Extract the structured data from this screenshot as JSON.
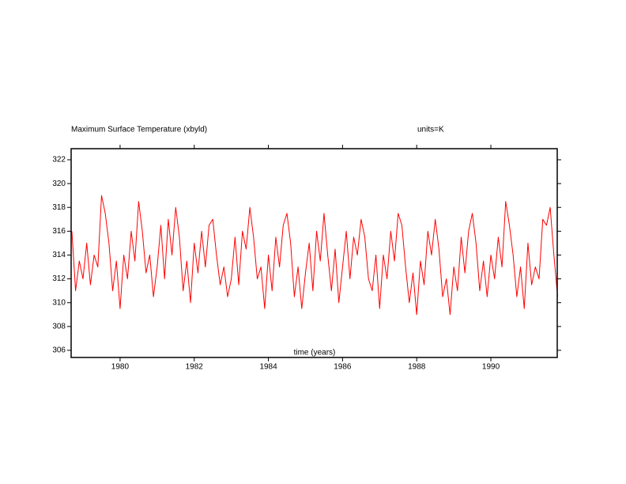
{
  "chart_data": {
    "type": "line",
    "title": "Maximum Surface Temperature (xbyld)",
    "subtitle": "units=K",
    "x_label": "time (years)",
    "xlim": [
      1978.68,
      1991.79
    ],
    "ylim": [
      305.4,
      322.93
    ],
    "xticks": [
      1980,
      1982,
      1984,
      1986,
      1988,
      1990
    ],
    "yticks": [
      306,
      308,
      310,
      312,
      314,
      316,
      318,
      320,
      322
    ],
    "grid": false,
    "x": [
      1978.7,
      1978.8,
      1978.9,
      1979.0,
      1979.1,
      1979.2,
      1979.3,
      1979.4,
      1979.5,
      1979.6,
      1979.7,
      1979.8,
      1979.9,
      1980.0,
      1980.1,
      1980.2,
      1980.3,
      1980.4,
      1980.5,
      1980.6,
      1980.7,
      1980.8,
      1980.9,
      1981.0,
      1981.1,
      1981.2,
      1981.3,
      1981.4,
      1981.5,
      1981.6,
      1981.7,
      1981.8,
      1981.9,
      1982.0,
      1982.1,
      1982.2,
      1982.3,
      1982.4,
      1982.5,
      1982.6,
      1982.7,
      1982.8,
      1982.9,
      1983.0,
      1983.1,
      1983.2,
      1983.3,
      1983.4,
      1983.5,
      1983.6,
      1983.7,
      1983.8,
      1983.9,
      1984.0,
      1984.1,
      1984.2,
      1984.3,
      1984.4,
      1984.5,
      1984.6,
      1984.7,
      1984.8,
      1984.9,
      1985.0,
      1985.1,
      1985.2,
      1985.3,
      1985.4,
      1985.5,
      1985.6,
      1985.7,
      1985.8,
      1985.9,
      1986.0,
      1986.1,
      1986.2,
      1986.3,
      1986.4,
      1986.5,
      1986.6,
      1986.7,
      1986.8,
      1986.9,
      1987.0,
      1987.1,
      1987.2,
      1987.3,
      1987.4,
      1987.5,
      1987.6,
      1987.7,
      1987.8,
      1987.9,
      1988.0,
      1988.1,
      1988.2,
      1988.3,
      1988.4,
      1988.5,
      1988.6,
      1988.7,
      1988.8,
      1988.9,
      1989.0,
      1989.1,
      1989.2,
      1989.3,
      1989.4,
      1989.5,
      1989.6,
      1989.7,
      1989.8,
      1989.9,
      1990.0,
      1990.1,
      1990.2,
      1990.3,
      1990.4,
      1990.5,
      1990.6,
      1990.7,
      1990.8,
      1990.9,
      1991.0,
      1991.1,
      1991.2,
      1991.3,
      1991.4,
      1991.5,
      1991.6,
      1991.7,
      1991.8
    ],
    "series": [
      {
        "color": "#ff0000",
        "values": [
          316,
          311,
          313.5,
          312,
          315,
          311.5,
          314,
          313,
          319,
          317.5,
          315,
          311,
          313.5,
          309.5,
          314,
          312,
          316,
          313.5,
          318.5,
          316,
          312.5,
          314,
          310.5,
          313,
          316.5,
          312,
          317,
          314,
          318,
          315.5,
          311,
          313.5,
          310,
          315,
          312.5,
          316,
          313,
          316.5,
          317,
          314,
          311.5,
          313,
          310.5,
          312,
          315.5,
          311.5,
          316,
          314.5,
          318,
          315.5,
          312,
          313,
          309.5,
          314,
          311,
          315.5,
          313,
          316.5,
          317.5,
          315,
          310.5,
          313,
          309.5,
          312.5,
          315,
          311,
          316,
          313.5,
          317.5,
          314,
          311,
          314.5,
          310,
          313,
          316,
          312,
          315.5,
          314,
          317,
          315.5,
          312,
          311,
          314,
          309.5,
          314,
          312,
          316,
          313.5,
          317.5,
          316.5,
          313,
          310,
          312.5,
          309,
          313.5,
          311.5,
          316,
          314,
          317,
          314.5,
          310.5,
          312,
          309,
          313,
          311,
          315.5,
          312.5,
          316,
          317.5,
          315,
          311,
          313.5,
          310.5,
          314,
          312,
          315.5,
          313,
          318.5,
          316.5,
          314,
          310.5,
          313,
          309.5,
          315,
          311.5,
          313,
          312,
          317,
          316.5,
          318,
          314,
          310.5
        ]
      }
    ]
  }
}
